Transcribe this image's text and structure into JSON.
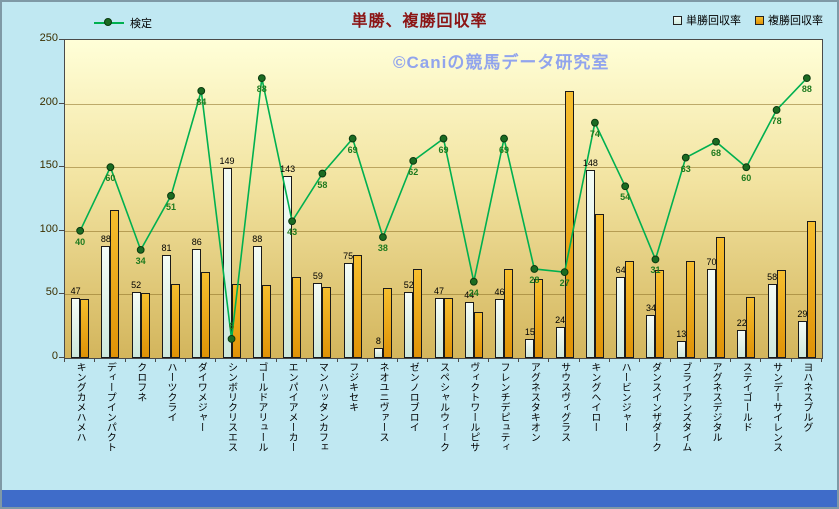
{
  "title": "単勝、複勝回収率",
  "watermark": "©Caniの競馬データ研究室",
  "legend": {
    "kentei": "検定",
    "tansho": "単勝回収率",
    "fukusho": "複勝回収率"
  },
  "colors": {
    "background": "#C0E8F2",
    "plot_top": "#FFFFD8",
    "plot_bottom": "#D3B55C",
    "title_text": "#8B1515",
    "watermark_text": "#8CA0EF",
    "tansho_bar": "#DDF2E8",
    "fukusho_bar": "#EFA60F",
    "kentei_line": "#00B050",
    "kentei_marker": "#1B6B22",
    "kentei_label": "#1E7A1E",
    "bottom_strip": "#3F6CC9"
  },
  "chart_data": {
    "type": "bar",
    "title": "単勝、複勝回収率",
    "categories": [
      "キングカメハメハ",
      "ディープインパクト",
      "クロフネ",
      "ハーツクライ",
      "ダイワメジャー",
      "シンボリクリスエス",
      "ゴールドアリュール",
      "エンパイアメーカー",
      "マンハッタンカフェ",
      "フジキセキ",
      "ネオユニヴァース",
      "ゼンノロブロイ",
      "スペシャルウィーク",
      "ヴィクトワールピサ",
      "フレンチデピュティ",
      "アグネスタキオン",
      "サウスヴィグラス",
      "キングヘイロー",
      "ハービンジャー",
      "ダンスインザダーク",
      "ブライアンズタイム",
      "アグネスデジタル",
      "ステイゴールド",
      "サンデーサイレンス",
      "ヨハネスブルグ"
    ],
    "series": [
      {
        "name": "単勝回収率",
        "type": "bar",
        "color": "#DDF2E8",
        "labels_shown": true,
        "values": [
          47,
          88,
          52,
          81,
          86,
          149,
          88,
          143,
          59,
          75,
          8,
          52,
          47,
          44,
          46,
          15,
          24,
          148,
          64,
          34,
          13,
          70,
          22,
          58,
          29
        ]
      },
      {
        "name": "複勝回収率",
        "type": "bar",
        "color": "#EFA60F",
        "labels_shown": false,
        "values": [
          46,
          116,
          51,
          58,
          68,
          58,
          57,
          64,
          56,
          81,
          55,
          70,
          47,
          36,
          70,
          62,
          210,
          113,
          76,
          69,
          76,
          95,
          48,
          69,
          108
        ]
      },
      {
        "name": "検定",
        "type": "line",
        "color": "#00B050",
        "labels_shown": true,
        "plot_scale": 2.5,
        "values": [
          40,
          60,
          34,
          51,
          84,
          6,
          88,
          43,
          58,
          69,
          38,
          62,
          69,
          24,
          69,
          28,
          27,
          74,
          54,
          31,
          63,
          68,
          60,
          78,
          88
        ]
      }
    ],
    "ylim": [
      0,
      250
    ],
    "yticks": [
      0,
      50,
      100,
      150,
      200,
      250
    ],
    "grid": "horizontal",
    "legend_position": "top"
  }
}
